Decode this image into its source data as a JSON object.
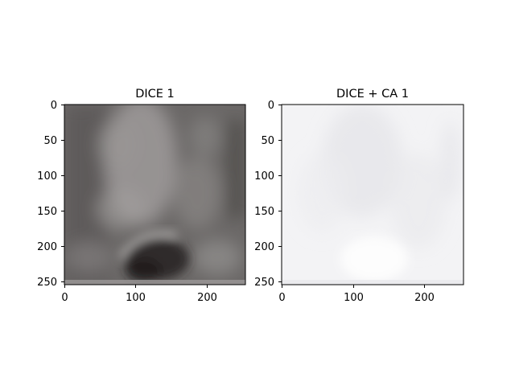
{
  "figure": {
    "panels": [
      {
        "title": "DICE 1",
        "x_ticks": [
          "0",
          "100",
          "200"
        ],
        "y_ticks": [
          "0",
          "50",
          "100",
          "150",
          "200",
          "250"
        ],
        "image_tone": "dark"
      },
      {
        "title": "DICE + CA 1",
        "x_ticks": [
          "0",
          "100",
          "200"
        ],
        "y_ticks": [
          "0",
          "50",
          "100",
          "150",
          "200",
          "250"
        ],
        "image_tone": "light"
      }
    ]
  },
  "colors": {
    "dark_base": "#6b6867",
    "light_base": "#f3f3f5",
    "axis": "#000000"
  }
}
